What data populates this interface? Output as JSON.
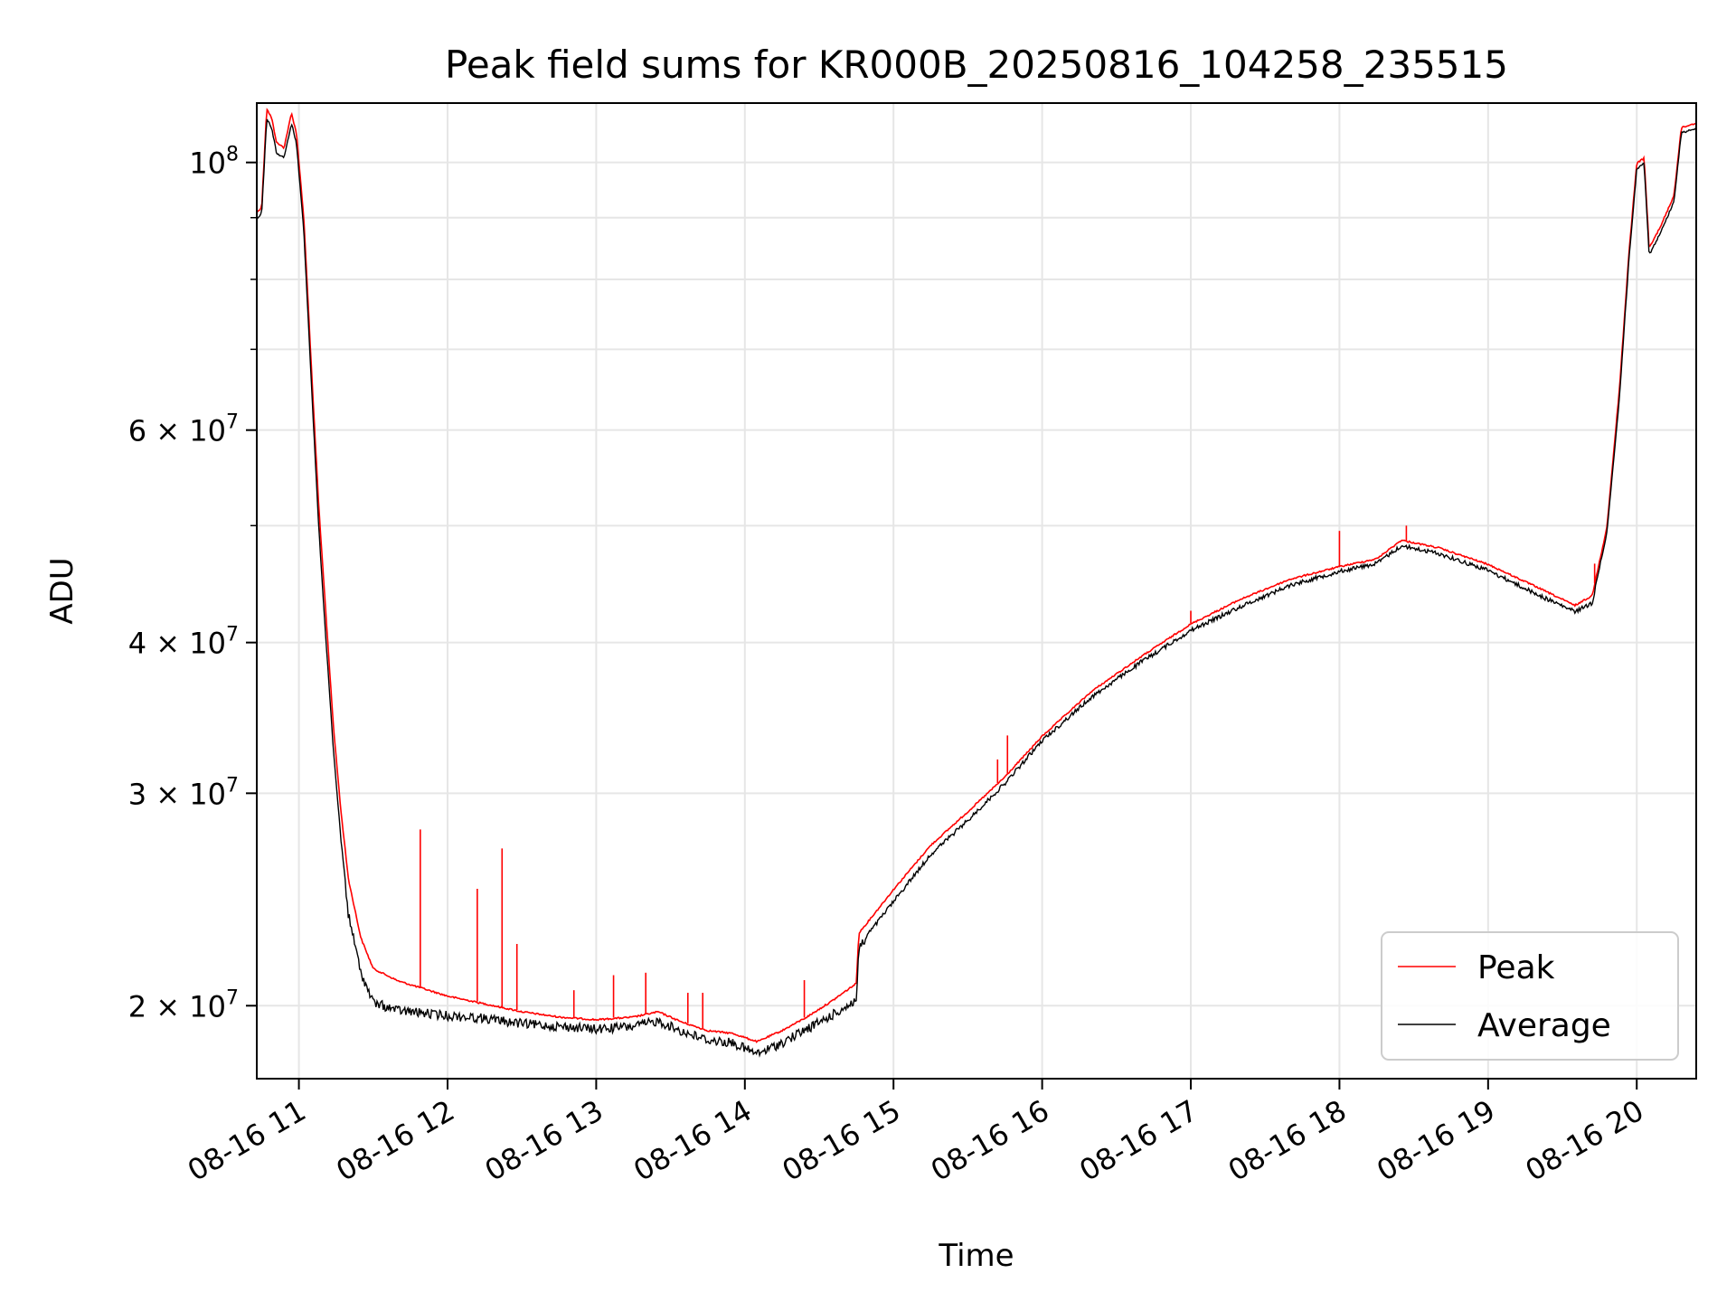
{
  "chart_data": {
    "type": "line",
    "title": "Peak field sums for KR000B_20250816_104258_235515",
    "xlabel": "Time",
    "ylabel": "ADU",
    "yscale": "log",
    "xlim": [
      "2025-08-16T10:43:00",
      "2025-08-16T20:24:00"
    ],
    "ylim": [
      17400000,
      112000000
    ],
    "grid": true,
    "legend_position": "lower-right",
    "x_ticks": [
      {
        "t": "2025-08-16T11:00:00",
        "label": "08-16 11"
      },
      {
        "t": "2025-08-16T12:00:00",
        "label": "08-16 12"
      },
      {
        "t": "2025-08-16T13:00:00",
        "label": "08-16 13"
      },
      {
        "t": "2025-08-16T14:00:00",
        "label": "08-16 14"
      },
      {
        "t": "2025-08-16T15:00:00",
        "label": "08-16 15"
      },
      {
        "t": "2025-08-16T16:00:00",
        "label": "08-16 16"
      },
      {
        "t": "2025-08-16T17:00:00",
        "label": "08-16 17"
      },
      {
        "t": "2025-08-16T18:00:00",
        "label": "08-16 18"
      },
      {
        "t": "2025-08-16T19:00:00",
        "label": "08-16 19"
      },
      {
        "t": "2025-08-16T20:00:00",
        "label": "08-16 20"
      }
    ],
    "y_ticks": [
      {
        "v": 20000000,
        "base": "2 × 10",
        "exp": "7"
      },
      {
        "v": 30000000,
        "base": "3 × 10",
        "exp": "7"
      },
      {
        "v": 40000000,
        "base": "4 × 10",
        "exp": "7"
      },
      {
        "v": 60000000,
        "base": "6 × 10",
        "exp": "7"
      },
      {
        "v": 100000000,
        "base": "10",
        "exp": "8"
      }
    ],
    "y_minor_ticks": [
      50000000,
      70000000,
      80000000,
      90000000
    ],
    "series": [
      {
        "name": "Peak",
        "color": "#ff0000",
        "points": [
          [
            "2025-08-16T10:43:00",
            91000000
          ],
          [
            "2025-08-16T10:45:00",
            92000000
          ],
          [
            "2025-08-16T10:47:00",
            111000000
          ],
          [
            "2025-08-16T10:49:00",
            109000000
          ],
          [
            "2025-08-16T10:51:00",
            104000000
          ],
          [
            "2025-08-16T10:54:00",
            103000000
          ],
          [
            "2025-08-16T10:57:00",
            110000000
          ],
          [
            "2025-08-16T10:59:00",
            106000000
          ],
          [
            "2025-08-16T11:02:00",
            90000000
          ],
          [
            "2025-08-16T11:05:00",
            68000000
          ],
          [
            "2025-08-16T11:08:00",
            52000000
          ],
          [
            "2025-08-16T11:11:00",
            42000000
          ],
          [
            "2025-08-16T11:14:00",
            34000000
          ],
          [
            "2025-08-16T11:17:00",
            29000000
          ],
          [
            "2025-08-16T11:20:00",
            25500000
          ],
          [
            "2025-08-16T11:25:00",
            22800000
          ],
          [
            "2025-08-16T11:30:00",
            21500000
          ],
          [
            "2025-08-16T11:40:00",
            21000000
          ],
          [
            "2025-08-16T11:50:00",
            20700000
          ],
          [
            "2025-08-16T12:00:00",
            20400000
          ],
          [
            "2025-08-16T12:15:00",
            20100000
          ],
          [
            "2025-08-16T12:30:00",
            19800000
          ],
          [
            "2025-08-16T12:45:00",
            19600000
          ],
          [
            "2025-08-16T13:00:00",
            19500000
          ],
          [
            "2025-08-16T13:15:00",
            19600000
          ],
          [
            "2025-08-16T13:25:00",
            19800000
          ],
          [
            "2025-08-16T13:35:00",
            19400000
          ],
          [
            "2025-08-16T13:45:00",
            19100000
          ],
          [
            "2025-08-16T13:55:00",
            19000000
          ],
          [
            "2025-08-16T14:05:00",
            18700000
          ],
          [
            "2025-08-16T14:15:00",
            19100000
          ],
          [
            "2025-08-16T14:25:00",
            19600000
          ],
          [
            "2025-08-16T14:35:00",
            20200000
          ],
          [
            "2025-08-16T14:45:00",
            20900000
          ],
          [
            "2025-08-16T14:46:00",
            23000000
          ],
          [
            "2025-08-16T15:00:00",
            25000000
          ],
          [
            "2025-08-16T15:15:00",
            27200000
          ],
          [
            "2025-08-16T15:30:00",
            29000000
          ],
          [
            "2025-08-16T15:45:00",
            31000000
          ],
          [
            "2025-08-16T16:00:00",
            33500000
          ],
          [
            "2025-08-16T16:20:00",
            36500000
          ],
          [
            "2025-08-16T16:40:00",
            39000000
          ],
          [
            "2025-08-16T17:00:00",
            41500000
          ],
          [
            "2025-08-16T17:20:00",
            43500000
          ],
          [
            "2025-08-16T17:40:00",
            45200000
          ],
          [
            "2025-08-16T18:00:00",
            46300000
          ],
          [
            "2025-08-16T18:15:00",
            47000000
          ],
          [
            "2025-08-16T18:25:00",
            48700000
          ],
          [
            "2025-08-16T18:40:00",
            48000000
          ],
          [
            "2025-08-16T19:00:00",
            46500000
          ],
          [
            "2025-08-16T19:20:00",
            44500000
          ],
          [
            "2025-08-16T19:35:00",
            43000000
          ],
          [
            "2025-08-16T19:42:00",
            43800000
          ],
          [
            "2025-08-16T19:48:00",
            50000000
          ],
          [
            "2025-08-16T19:53:00",
            65000000
          ],
          [
            "2025-08-16T19:57:00",
            85000000
          ],
          [
            "2025-08-16T20:00:00",
            100000000
          ],
          [
            "2025-08-16T20:03:00",
            101000000
          ],
          [
            "2025-08-16T20:05:00",
            85000000
          ],
          [
            "2025-08-16T20:10:00",
            89000000
          ],
          [
            "2025-08-16T20:15:00",
            94000000
          ],
          [
            "2025-08-16T20:18:00",
            107000000
          ],
          [
            "2025-08-16T20:24:00",
            108000000
          ]
        ],
        "spikes": [
          [
            "2025-08-16T11:49:00",
            28000000
          ],
          [
            "2025-08-16T12:12:00",
            25000000
          ],
          [
            "2025-08-16T12:22:00",
            27000000
          ],
          [
            "2025-08-16T12:28:00",
            22500000
          ],
          [
            "2025-08-16T12:51:00",
            20600000
          ],
          [
            "2025-08-16T13:07:00",
            21200000
          ],
          [
            "2025-08-16T13:20:00",
            21300000
          ],
          [
            "2025-08-16T13:37:00",
            20500000
          ],
          [
            "2025-08-16T13:43:00",
            20500000
          ],
          [
            "2025-08-16T14:24:00",
            21000000
          ],
          [
            "2025-08-16T15:42:00",
            32000000
          ],
          [
            "2025-08-16T15:46:00",
            33500000
          ],
          [
            "2025-08-16T17:00:00",
            42500000
          ],
          [
            "2025-08-16T18:00:00",
            49500000
          ],
          [
            "2025-08-16T18:27:00",
            50000000
          ],
          [
            "2025-08-16T19:43:00",
            46500000
          ]
        ]
      },
      {
        "name": "Average",
        "color": "#000000",
        "points": [
          [
            "2025-08-16T10:43:00",
            90000000
          ],
          [
            "2025-08-16T10:45:00",
            91000000
          ],
          [
            "2025-08-16T10:47:00",
            109000000
          ],
          [
            "2025-08-16T10:49:00",
            107000000
          ],
          [
            "2025-08-16T10:51:00",
            102000000
          ],
          [
            "2025-08-16T10:54:00",
            101000000
          ],
          [
            "2025-08-16T10:57:00",
            108000000
          ],
          [
            "2025-08-16T10:59:00",
            104000000
          ],
          [
            "2025-08-16T11:02:00",
            88000000
          ],
          [
            "2025-08-16T11:05:00",
            66000000
          ],
          [
            "2025-08-16T11:08:00",
            50000000
          ],
          [
            "2025-08-16T11:11:00",
            40000000
          ],
          [
            "2025-08-16T11:14:00",
            32500000
          ],
          [
            "2025-08-16T11:17:00",
            27500000
          ],
          [
            "2025-08-16T11:20:00",
            24000000
          ],
          [
            "2025-08-16T11:25:00",
            21500000
          ],
          [
            "2025-08-16T11:30:00",
            20300000
          ],
          [
            "2025-08-16T11:40:00",
            20000000
          ],
          [
            "2025-08-16T11:50:00",
            19900000
          ],
          [
            "2025-08-16T12:00:00",
            19800000
          ],
          [
            "2025-08-16T12:15:00",
            19700000
          ],
          [
            "2025-08-16T12:30:00",
            19500000
          ],
          [
            "2025-08-16T12:45:00",
            19400000
          ],
          [
            "2025-08-16T13:00:00",
            19300000
          ],
          [
            "2025-08-16T13:15:00",
            19400000
          ],
          [
            "2025-08-16T13:25:00",
            19600000
          ],
          [
            "2025-08-16T13:35:00",
            19200000
          ],
          [
            "2025-08-16T13:45:00",
            18900000
          ],
          [
            "2025-08-16T13:55:00",
            18800000
          ],
          [
            "2025-08-16T14:05:00",
            18400000
          ],
          [
            "2025-08-16T14:15:00",
            18800000
          ],
          [
            "2025-08-16T14:25:00",
            19300000
          ],
          [
            "2025-08-16T14:35:00",
            19800000
          ],
          [
            "2025-08-16T14:45:00",
            20400000
          ],
          [
            "2025-08-16T14:46:00",
            22500000
          ],
          [
            "2025-08-16T15:00:00",
            24500000
          ],
          [
            "2025-08-16T15:15:00",
            26800000
          ],
          [
            "2025-08-16T15:30:00",
            28600000
          ],
          [
            "2025-08-16T15:45:00",
            30700000
          ],
          [
            "2025-08-16T16:00:00",
            33300000
          ],
          [
            "2025-08-16T16:20:00",
            36200000
          ],
          [
            "2025-08-16T16:40:00",
            38700000
          ],
          [
            "2025-08-16T17:00:00",
            41100000
          ],
          [
            "2025-08-16T17:20:00",
            43000000
          ],
          [
            "2025-08-16T17:40:00",
            44800000
          ],
          [
            "2025-08-16T18:00:00",
            46000000
          ],
          [
            "2025-08-16T18:15:00",
            46700000
          ],
          [
            "2025-08-16T18:25:00",
            48300000
          ],
          [
            "2025-08-16T18:40:00",
            47600000
          ],
          [
            "2025-08-16T19:00:00",
            46100000
          ],
          [
            "2025-08-16T19:20:00",
            44000000
          ],
          [
            "2025-08-16T19:35:00",
            42600000
          ],
          [
            "2025-08-16T19:42:00",
            43300000
          ],
          [
            "2025-08-16T19:48:00",
            49500000
          ],
          [
            "2025-08-16T19:53:00",
            64000000
          ],
          [
            "2025-08-16T19:57:00",
            84000000
          ],
          [
            "2025-08-16T20:00:00",
            99000000
          ],
          [
            "2025-08-16T20:03:00",
            100000000
          ],
          [
            "2025-08-16T20:05:00",
            84000000
          ],
          [
            "2025-08-16T20:10:00",
            88000000
          ],
          [
            "2025-08-16T20:15:00",
            93000000
          ],
          [
            "2025-08-16T20:18:00",
            106000000
          ],
          [
            "2025-08-16T20:24:00",
            107000000
          ]
        ]
      }
    ]
  }
}
